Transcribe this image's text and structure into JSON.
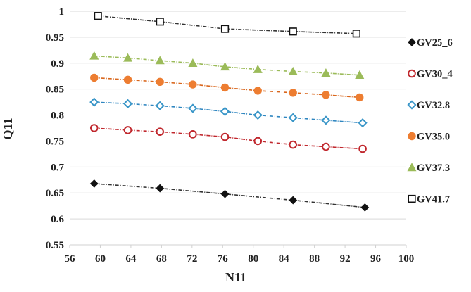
{
  "chart_data": {
    "type": "line",
    "title": "",
    "xlabel": "N11",
    "ylabel": "Q11",
    "xlim": [
      56,
      100
    ],
    "ylim": [
      0.55,
      1
    ],
    "x_ticks": [
      56,
      60,
      64,
      68,
      72,
      76,
      80,
      84,
      88,
      92,
      96,
      100
    ],
    "x_tick_labels": [
      "56",
      "60",
      "64",
      "68",
      "72",
      "76",
      "80",
      "84",
      "88",
      "92",
      "96",
      "100"
    ],
    "y_ticks": [
      0.55,
      0.6,
      0.65,
      0.7,
      0.75,
      0.8,
      0.85,
      0.9,
      0.95,
      1
    ],
    "y_tick_labels": [
      "0.55",
      "0.6",
      "0.65",
      "0.7",
      "0.75",
      "0.8",
      "0.85",
      "0.9",
      "0.95",
      "1"
    ],
    "grid": "horizontal",
    "legend_position": "right",
    "series": [
      {
        "name": "GV25_6",
        "marker": "diamond-filled",
        "color": "#111111",
        "line_color": "#333333",
        "x": [
          59.2,
          67.8,
          76.3,
          85.2,
          94.6
        ],
        "y": [
          0.668,
          0.659,
          0.648,
          0.636,
          0.622
        ]
      },
      {
        "name": "GV30_4",
        "marker": "circle-open",
        "color": "#c0272d",
        "line_color": "#c0272d",
        "x": [
          59.2,
          63.6,
          67.8,
          72.1,
          76.3,
          80.6,
          85.2,
          89.5,
          94.3
        ],
        "y": [
          0.775,
          0.771,
          0.768,
          0.763,
          0.758,
          0.75,
          0.743,
          0.739,
          0.735
        ]
      },
      {
        "name": "GV32.8",
        "marker": "diamond-open",
        "color": "#3a96c8",
        "line_color": "#2f86c0",
        "x": [
          59.2,
          63.6,
          67.8,
          72.1,
          76.3,
          80.6,
          85.2,
          89.5,
          94.3
        ],
        "y": [
          0.825,
          0.822,
          0.818,
          0.813,
          0.807,
          0.8,
          0.795,
          0.79,
          0.785
        ]
      },
      {
        "name": "GV35.0",
        "marker": "circle-filled",
        "color": "#ed7d31",
        "line_color": "#d9661c",
        "x": [
          59.2,
          63.6,
          67.8,
          72.1,
          76.3,
          80.6,
          85.2,
          89.5,
          93.9
        ],
        "y": [
          0.872,
          0.868,
          0.864,
          0.859,
          0.853,
          0.847,
          0.843,
          0.839,
          0.834
        ]
      },
      {
        "name": "GV37.3",
        "marker": "triangle-filled",
        "color": "#9bbb59",
        "line_color": "#9bbb59",
        "x": [
          59.2,
          63.6,
          67.8,
          72.1,
          76.3,
          80.6,
          85.2,
          89.5,
          93.9
        ],
        "y": [
          0.914,
          0.91,
          0.905,
          0.9,
          0.893,
          0.888,
          0.884,
          0.881,
          0.877
        ]
      },
      {
        "name": "GV41.7",
        "marker": "square-open",
        "color": "#111111",
        "line_color": "#333333",
        "x": [
          59.7,
          67.8,
          76.3,
          85.2,
          93.5
        ],
        "y": [
          0.991,
          0.98,
          0.966,
          0.961,
          0.957
        ]
      }
    ]
  }
}
